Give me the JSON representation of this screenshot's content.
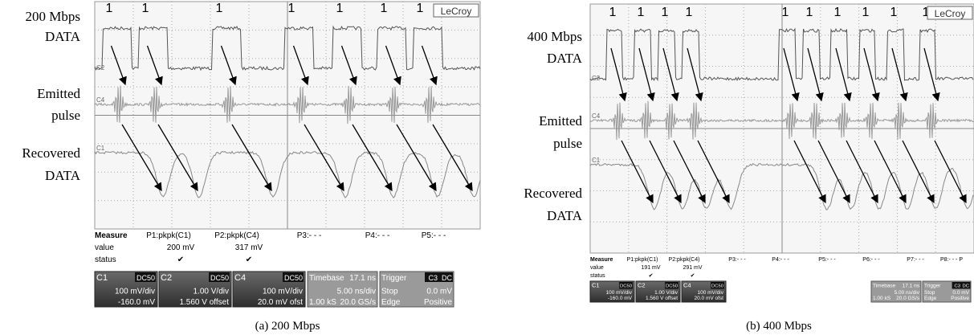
{
  "panels": [
    {
      "labels": [
        "200 Mbps",
        "DATA",
        "Emitted",
        "pulse",
        "Recovered",
        "DATA"
      ],
      "bits": [
        "1",
        "1",
        "1",
        "1",
        "1",
        "1",
        "1"
      ],
      "brand": "LeCroy",
      "channels": [
        "C2",
        "C4",
        "C1"
      ],
      "measure": {
        "header": [
          "Measure",
          "P1:pkpk(C1)",
          "P2:pkpk(C4)",
          "P3:- - -",
          "P4:- - -",
          "P5:- - -"
        ],
        "value": [
          "value",
          "200 mV",
          "317 mV"
        ],
        "status": [
          "status",
          "✔",
          "✔"
        ]
      },
      "boxes": [
        [
          "C1",
          "DC50",
          "100 mV/div",
          "-160.0 mV"
        ],
        [
          "C2",
          "DC50",
          "1.00 V/div",
          "1.560 V offset"
        ],
        [
          "C4",
          "DC50",
          "100 mV/div",
          "20.0 mV ofst"
        ]
      ],
      "timebase": [
        "Timebase",
        "17.1 ns",
        "5.00 ns/div",
        "1.00 kS",
        "20.0 GS/s"
      ],
      "trigger": [
        "Trigger",
        "C3",
        "DC",
        "Stop",
        "0.0 mV",
        "Edge",
        "Positive"
      ],
      "caption": "(a) 200 Mbps"
    },
    {
      "labels": [
        "400 Mbps",
        "DATA",
        "Emitted",
        "pulse",
        "Recovered",
        "DATA"
      ],
      "bits": [
        "1",
        "1",
        "1",
        "1",
        "1",
        "1",
        "1",
        "1",
        "1",
        "1"
      ],
      "brand": "LeCroy",
      "channels": [
        "C2",
        "C4",
        "C1"
      ],
      "measure": {
        "header": [
          "Measure",
          "P1:pkpk(C1)",
          "P2:pkpk(C4)",
          "P3:- - -",
          "P4:- - -",
          "P5:- - -",
          "P6:- - -",
          "P7:- - -",
          "P8:- - - P"
        ],
        "value": [
          "value",
          "191 mV",
          "291 mV"
        ],
        "status": [
          "status",
          "✔",
          "✔"
        ]
      },
      "boxes": [
        [
          "C1",
          "DC50",
          "100 mV/div",
          "-160.0 mV"
        ],
        [
          "C2",
          "DC50",
          "1.00 V/div",
          "1.560 V offset"
        ],
        [
          "C4",
          "DC50",
          "100 mV/div",
          "20.0 mV ofst"
        ]
      ],
      "timebase": [
        "Timebase",
        "17.1 ns",
        "5.00 ns/div",
        "1.00 kS",
        "20.0 GS/s"
      ],
      "trigger": [
        "Trigger",
        "C3",
        "DC",
        "Stop",
        "0.0 mV",
        "Edge",
        "Positive"
      ],
      "caption": "(b) 400 Mbps"
    }
  ]
}
